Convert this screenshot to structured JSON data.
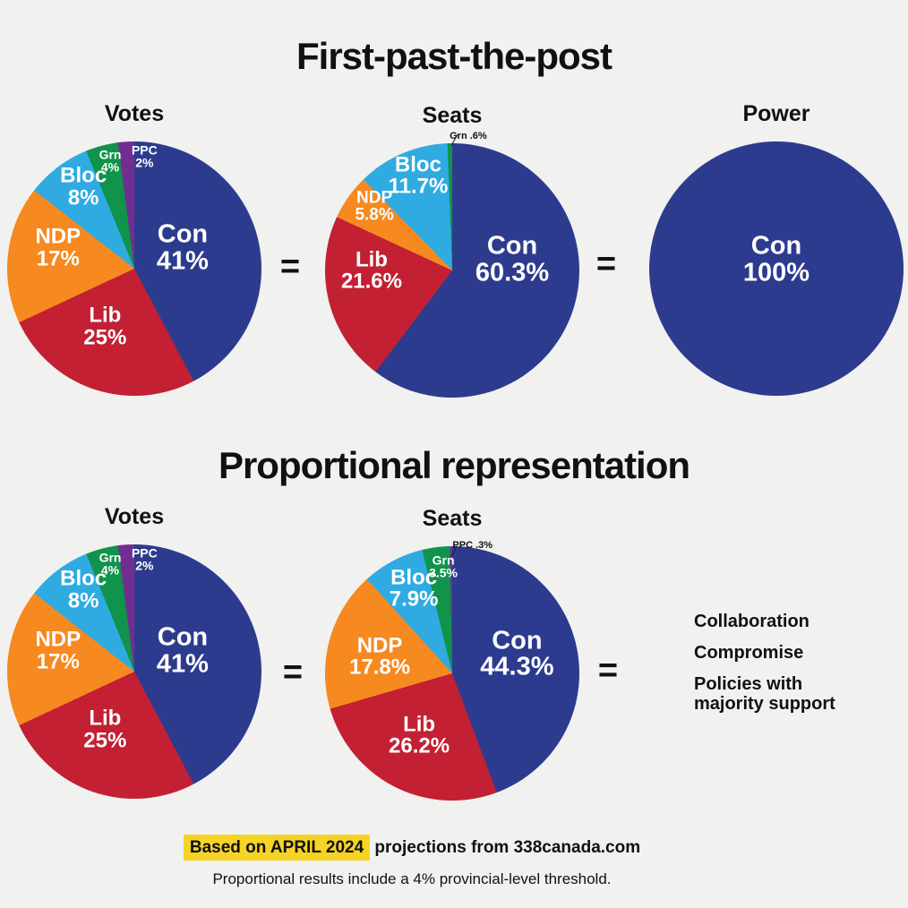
{
  "page": {
    "background": "#f1f1ef",
    "description": "Infographic comparing first-past-the-post and proportional representation election outcomes in Canada using pie charts"
  },
  "palette": {
    "con": "#2d3b8e",
    "lib": "#c32033",
    "ndp": "#f6891f",
    "bloc": "#2fabe2",
    "grn": "#10934a",
    "ppc": "#702f90",
    "text": "#111111",
    "label_light": "#ffffff",
    "highlight": "#f5d327"
  },
  "sections": {
    "fptp": {
      "title": "First-past-the-post"
    },
    "pr": {
      "title": "Proportional representation"
    }
  },
  "equals": "=",
  "outcomes": [
    "Collaboration",
    "Compromise",
    "Policies with majority support"
  ],
  "footer": {
    "highlight": "Based on APRIL 2024",
    "rest": " projections from 338canada.com",
    "note": "Proportional results include a 4% provincial-level threshold."
  },
  "chart_data": [
    {
      "type": "pie",
      "id": "fptp-votes",
      "title": "Votes",
      "start_angle_deg": 0,
      "direction": "clockwise",
      "slices": [
        {
          "party": "Con",
          "key": "con",
          "value": 41,
          "display": "41%",
          "size": "xl",
          "placement": "inside",
          "pos": [
            69,
            42
          ]
        },
        {
          "party": "Lib",
          "key": "lib",
          "value": 25,
          "display": "25%",
          "size": "lg",
          "placement": "inside",
          "pos": [
            38.5,
            73
          ]
        },
        {
          "party": "NDP",
          "key": "ndp",
          "value": 17,
          "display": "17%",
          "size": "lg",
          "placement": "inside",
          "pos": [
            20,
            42
          ]
        },
        {
          "party": "Bloc",
          "key": "bloc",
          "value": 8,
          "display": "8%",
          "size": "lg",
          "placement": "inside",
          "pos": [
            30,
            18
          ]
        },
        {
          "party": "Grn",
          "key": "grn",
          "value": 4,
          "display": "4%",
          "size": "sm",
          "placement": "inside",
          "pos": [
            40.5,
            7.7
          ]
        },
        {
          "party": "PPC",
          "key": "ppc",
          "value": 2,
          "display": "2%",
          "size": "sm",
          "placement": "inside",
          "pos": [
            54,
            6
          ]
        }
      ]
    },
    {
      "type": "pie",
      "id": "fptp-seats",
      "title": "Seats",
      "start_angle_deg": 0,
      "direction": "clockwise",
      "slices": [
        {
          "party": "Con",
          "key": "con",
          "value": 60.3,
          "display": "60.3%",
          "size": "xl",
          "placement": "inside",
          "pos": [
            73.6,
            45.8
          ]
        },
        {
          "party": "Lib",
          "key": "lib",
          "value": 21.6,
          "display": "21.6%",
          "size": "lg",
          "placement": "inside",
          "pos": [
            18.3,
            50.3
          ]
        },
        {
          "party": "NDP",
          "key": "ndp",
          "value": 5.8,
          "display": "5.8%",
          "size": "md",
          "placement": "inside",
          "pos": [
            19.4,
            25
          ]
        },
        {
          "party": "Bloc",
          "key": "bloc",
          "value": 11.7,
          "display": "11.7%",
          "size": "lg",
          "placement": "inside",
          "pos": [
            36.6,
            13
          ]
        },
        {
          "party": "Grn",
          "key": "grn",
          "value": 0.6,
          "display": ".6%",
          "size": "xs",
          "placement": "outside",
          "pos": [
            56.3,
            -2.8
          ]
        }
      ],
      "callout": {
        "x": 49.6,
        "y": 0.7,
        "len": 14,
        "angle": -60
      }
    },
    {
      "type": "pie",
      "id": "fptp-power",
      "title": "Power",
      "start_angle_deg": 0,
      "direction": "clockwise",
      "slices": [
        {
          "party": "Con",
          "key": "con",
          "value": 100,
          "display": "100%",
          "size": "xl",
          "placement": "inside",
          "pos": [
            50,
            46.5
          ]
        }
      ]
    },
    {
      "type": "pie",
      "id": "pr-votes",
      "title": "Votes",
      "start_angle_deg": 0,
      "direction": "clockwise",
      "slices": [
        {
          "party": "Con",
          "key": "con",
          "value": 41,
          "display": "41%",
          "size": "xl",
          "placement": "inside",
          "pos": [
            69,
            42
          ]
        },
        {
          "party": "Lib",
          "key": "lib",
          "value": 25,
          "display": "25%",
          "size": "lg",
          "placement": "inside",
          "pos": [
            38.5,
            73
          ]
        },
        {
          "party": "NDP",
          "key": "ndp",
          "value": 17,
          "display": "17%",
          "size": "lg",
          "placement": "inside",
          "pos": [
            20,
            42
          ]
        },
        {
          "party": "Bloc",
          "key": "bloc",
          "value": 8,
          "display": "8%",
          "size": "lg",
          "placement": "inside",
          "pos": [
            30,
            18
          ]
        },
        {
          "party": "Grn",
          "key": "grn",
          "value": 4,
          "display": "4%",
          "size": "sm",
          "placement": "inside",
          "pos": [
            40.5,
            7.7
          ]
        },
        {
          "party": "PPC",
          "key": "ppc",
          "value": 2,
          "display": "2%",
          "size": "sm",
          "placement": "inside",
          "pos": [
            54,
            6
          ]
        }
      ]
    },
    {
      "type": "pie",
      "id": "pr-seats",
      "title": "Seats",
      "start_angle_deg": 0,
      "direction": "clockwise",
      "slices": [
        {
          "party": "Con",
          "key": "con",
          "value": 44.3,
          "display": "44.3%",
          "size": "xl",
          "placement": "inside",
          "pos": [
            75.5,
            42.5
          ]
        },
        {
          "party": "Lib",
          "key": "lib",
          "value": 26.2,
          "display": "26.2%",
          "size": "lg",
          "placement": "inside",
          "pos": [
            37,
            74.6
          ]
        },
        {
          "party": "NDP",
          "key": "ndp",
          "value": 17.8,
          "display": "17.8%",
          "size": "lg",
          "placement": "inside",
          "pos": [
            21.5,
            43.5
          ]
        },
        {
          "party": "Bloc",
          "key": "bloc",
          "value": 7.9,
          "display": "7.9%",
          "size": "lg",
          "placement": "inside",
          "pos": [
            34.9,
            16.9
          ]
        },
        {
          "party": "Grn",
          "key": "grn",
          "value": 3.5,
          "display": "3.5%",
          "size": "sm",
          "placement": "inside",
          "pos": [
            46.5,
            8
          ]
        },
        {
          "party": "PPC",
          "key": "ppc",
          "value": 0.3,
          "display": ".3%",
          "size": "xs",
          "placement": "outside",
          "pos": [
            58,
            -0.4
          ]
        }
      ],
      "callout": {
        "x": 49.6,
        "y": 3.9,
        "len": 13,
        "angle": -62
      }
    }
  ]
}
